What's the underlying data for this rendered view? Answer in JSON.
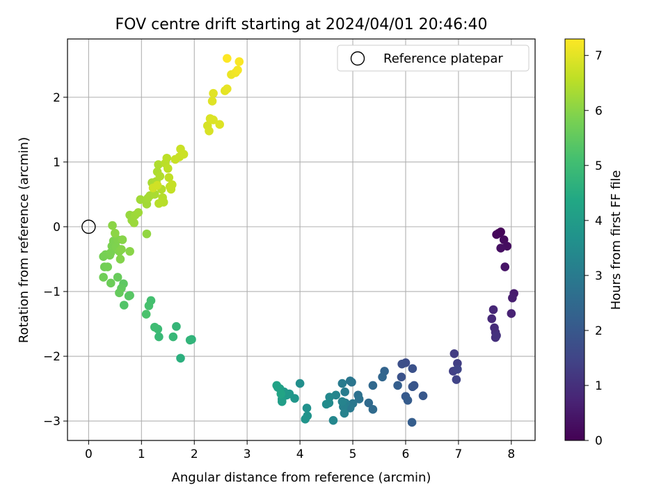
{
  "chart_data": {
    "type": "scatter",
    "title": "FOV centre drift starting at 2024/04/01 20:46:40",
    "xlabel": "Angular distance from reference (arcmin)",
    "ylabel": "Rotation from reference (arcmin)",
    "xlim": [
      -0.4,
      8.45
    ],
    "ylim": [
      -3.3,
      2.9
    ],
    "xticks": [
      "0",
      "1",
      "2",
      "3",
      "4",
      "5",
      "6",
      "7",
      "8"
    ],
    "yticks": [
      "−3",
      "−2",
      "−1",
      "0",
      "1",
      "2"
    ],
    "grid": true,
    "legend": {
      "placement": "top-right",
      "entries": [
        {
          "label": "Reference platepar",
          "marker": "open-circle"
        }
      ]
    },
    "reference_point": {
      "x": 0,
      "y": 0
    },
    "colorbar": {
      "label": "Hours from first FF file",
      "colormap": "viridis",
      "range": [
        0,
        7.3
      ],
      "ticks": [
        "0",
        "1",
        "2",
        "3",
        "4",
        "5",
        "6",
        "7"
      ]
    },
    "points": [
      {
        "x": 7.76,
        "y": -0.1,
        "hours": 0.05
      },
      {
        "x": 7.8,
        "y": -0.08,
        "hours": 0.1
      },
      {
        "x": 7.72,
        "y": -0.12,
        "hours": 0.15
      },
      {
        "x": 7.86,
        "y": -0.2,
        "hours": 0.2
      },
      {
        "x": 7.92,
        "y": -0.3,
        "hours": 0.25
      },
      {
        "x": 7.8,
        "y": -0.33,
        "hours": 0.3
      },
      {
        "x": 7.88,
        "y": -0.62,
        "hours": 0.4
      },
      {
        "x": 8.05,
        "y": -1.03,
        "hours": 0.55
      },
      {
        "x": 8.02,
        "y": -1.1,
        "hours": 0.6
      },
      {
        "x": 8.0,
        "y": -1.34,
        "hours": 0.7
      },
      {
        "x": 7.66,
        "y": -1.28,
        "hours": 0.8
      },
      {
        "x": 7.63,
        "y": -1.42,
        "hours": 0.85
      },
      {
        "x": 7.68,
        "y": -1.56,
        "hours": 0.9
      },
      {
        "x": 7.7,
        "y": -1.63,
        "hours": 0.95
      },
      {
        "x": 7.7,
        "y": -1.71,
        "hours": 1.0
      },
      {
        "x": 7.72,
        "y": -1.68,
        "hours": 1.05
      },
      {
        "x": 6.92,
        "y": -1.96,
        "hours": 1.3
      },
      {
        "x": 6.98,
        "y": -2.11,
        "hours": 1.35
      },
      {
        "x": 6.9,
        "y": -2.23,
        "hours": 1.4
      },
      {
        "x": 6.96,
        "y": -2.36,
        "hours": 1.45
      },
      {
        "x": 6.98,
        "y": -2.2,
        "hours": 1.5
      },
      {
        "x": 6.0,
        "y": -2.1,
        "hours": 1.7
      },
      {
        "x": 5.93,
        "y": -2.12,
        "hours": 1.75
      },
      {
        "x": 6.13,
        "y": -2.19,
        "hours": 1.8
      },
      {
        "x": 5.92,
        "y": -2.32,
        "hours": 1.85
      },
      {
        "x": 6.16,
        "y": -2.45,
        "hours": 1.9
      },
      {
        "x": 6.13,
        "y": -2.47,
        "hours": 1.95
      },
      {
        "x": 6.33,
        "y": -2.61,
        "hours": 2.0
      },
      {
        "x": 6.0,
        "y": -2.62,
        "hours": 2.05
      },
      {
        "x": 6.04,
        "y": -2.68,
        "hours": 2.1
      },
      {
        "x": 6.12,
        "y": -3.02,
        "hours": 2.15
      },
      {
        "x": 5.85,
        "y": -2.45,
        "hours": 2.2
      },
      {
        "x": 5.6,
        "y": -2.23,
        "hours": 2.35
      },
      {
        "x": 5.56,
        "y": -2.32,
        "hours": 2.4
      },
      {
        "x": 5.38,
        "y": -2.45,
        "hours": 2.45
      },
      {
        "x": 5.3,
        "y": -2.72,
        "hours": 2.5
      },
      {
        "x": 5.38,
        "y": -2.82,
        "hours": 2.55
      },
      {
        "x": 5.1,
        "y": -2.6,
        "hours": 2.7
      },
      {
        "x": 5.12,
        "y": -2.66,
        "hours": 2.75
      },
      {
        "x": 4.98,
        "y": -2.4,
        "hours": 2.8
      },
      {
        "x": 4.95,
        "y": -2.38,
        "hours": 2.85
      },
      {
        "x": 5.0,
        "y": -2.73,
        "hours": 2.9
      },
      {
        "x": 4.95,
        "y": -2.8,
        "hours": 2.95
      },
      {
        "x": 4.8,
        "y": -2.42,
        "hours": 3.0
      },
      {
        "x": 4.85,
        "y": -2.55,
        "hours": 3.05
      },
      {
        "x": 4.86,
        "y": -2.72,
        "hours": 3.1
      },
      {
        "x": 4.82,
        "y": -2.78,
        "hours": 3.15
      },
      {
        "x": 4.84,
        "y": -2.88,
        "hours": 3.2
      },
      {
        "x": 4.8,
        "y": -2.7,
        "hours": 3.25
      },
      {
        "x": 4.68,
        "y": -2.6,
        "hours": 3.3
      },
      {
        "x": 4.63,
        "y": -2.99,
        "hours": 3.35
      },
      {
        "x": 4.56,
        "y": -2.63,
        "hours": 3.4
      },
      {
        "x": 4.55,
        "y": -2.72,
        "hours": 3.45
      },
      {
        "x": 4.5,
        "y": -2.74,
        "hours": 3.5
      },
      {
        "x": 4.0,
        "y": -2.42,
        "hours": 3.6
      },
      {
        "x": 4.13,
        "y": -2.8,
        "hours": 3.65
      },
      {
        "x": 4.14,
        "y": -2.92,
        "hours": 3.7
      },
      {
        "x": 4.1,
        "y": -2.97,
        "hours": 3.75
      },
      {
        "x": 3.9,
        "y": -2.65,
        "hours": 3.8
      },
      {
        "x": 3.8,
        "y": -2.58,
        "hours": 3.85
      },
      {
        "x": 3.75,
        "y": -2.6,
        "hours": 3.9
      },
      {
        "x": 3.7,
        "y": -2.55,
        "hours": 3.95
      },
      {
        "x": 3.66,
        "y": -2.66,
        "hours": 4.0
      },
      {
        "x": 3.66,
        "y": -2.7,
        "hours": 4.05
      },
      {
        "x": 3.62,
        "y": -2.5,
        "hours": 4.1
      },
      {
        "x": 3.58,
        "y": -2.48,
        "hours": 4.15
      },
      {
        "x": 3.56,
        "y": -2.45,
        "hours": 4.2
      },
      {
        "x": 3.64,
        "y": -2.58,
        "hours": 4.25
      },
      {
        "x": 1.74,
        "y": -2.03,
        "hours": 4.6
      },
      {
        "x": 1.95,
        "y": -1.74,
        "hours": 4.7
      },
      {
        "x": 1.92,
        "y": -1.75,
        "hours": 4.75
      },
      {
        "x": 1.66,
        "y": -1.54,
        "hours": 4.8
      },
      {
        "x": 1.6,
        "y": -1.7,
        "hours": 4.85
      },
      {
        "x": 1.33,
        "y": -1.7,
        "hours": 4.9
      },
      {
        "x": 1.31,
        "y": -1.58,
        "hours": 4.95
      },
      {
        "x": 1.25,
        "y": -1.55,
        "hours": 5.0
      },
      {
        "x": 1.18,
        "y": -1.14,
        "hours": 5.1
      },
      {
        "x": 1.14,
        "y": -1.22,
        "hours": 5.15
      },
      {
        "x": 1.09,
        "y": -1.35,
        "hours": 5.2
      },
      {
        "x": 0.67,
        "y": -1.21,
        "hours": 5.3
      },
      {
        "x": 0.78,
        "y": -1.06,
        "hours": 5.35
      },
      {
        "x": 0.76,
        "y": -1.07,
        "hours": 5.4
      },
      {
        "x": 0.66,
        "y": -0.88,
        "hours": 5.45
      },
      {
        "x": 0.62,
        "y": -0.95,
        "hours": 5.5
      },
      {
        "x": 0.58,
        "y": -1.02,
        "hours": 5.55
      },
      {
        "x": 0.55,
        "y": -0.78,
        "hours": 5.6
      },
      {
        "x": 0.42,
        "y": -0.87,
        "hours": 5.65
      },
      {
        "x": 0.28,
        "y": -0.78,
        "hours": 5.7
      },
      {
        "x": 0.3,
        "y": -0.62,
        "hours": 5.72
      },
      {
        "x": 0.36,
        "y": -0.62,
        "hours": 5.74
      },
      {
        "x": 0.28,
        "y": -0.46,
        "hours": 5.76
      },
      {
        "x": 0.32,
        "y": -0.43,
        "hours": 5.78
      },
      {
        "x": 0.4,
        "y": -0.44,
        "hours": 5.8
      },
      {
        "x": 0.42,
        "y": -0.4,
        "hours": 5.82
      },
      {
        "x": 0.44,
        "y": -0.3,
        "hours": 5.84
      },
      {
        "x": 0.47,
        "y": -0.22,
        "hours": 5.86
      },
      {
        "x": 0.52,
        "y": -0.31,
        "hours": 5.88
      },
      {
        "x": 0.55,
        "y": -0.2,
        "hours": 5.9
      },
      {
        "x": 0.58,
        "y": -0.38,
        "hours": 5.92
      },
      {
        "x": 0.6,
        "y": -0.5,
        "hours": 5.94
      },
      {
        "x": 0.62,
        "y": -0.35,
        "hours": 5.96
      },
      {
        "x": 0.64,
        "y": -0.2,
        "hours": 5.98
      },
      {
        "x": 0.78,
        "y": -0.38,
        "hours": 6.0
      },
      {
        "x": 0.45,
        "y": 0.02,
        "hours": 6.02
      },
      {
        "x": 0.5,
        "y": -0.1,
        "hours": 6.04
      },
      {
        "x": 1.1,
        "y": -0.11,
        "hours": 6.1
      },
      {
        "x": 0.78,
        "y": 0.18,
        "hours": 6.15
      },
      {
        "x": 0.82,
        "y": 0.1,
        "hours": 6.18
      },
      {
        "x": 0.86,
        "y": 0.06,
        "hours": 6.2
      },
      {
        "x": 0.88,
        "y": 0.18,
        "hours": 6.22
      },
      {
        "x": 0.94,
        "y": 0.22,
        "hours": 6.24
      },
      {
        "x": 0.98,
        "y": 0.42,
        "hours": 6.26
      },
      {
        "x": 1.1,
        "y": 0.35,
        "hours": 6.28
      },
      {
        "x": 1.12,
        "y": 0.44,
        "hours": 6.3
      },
      {
        "x": 1.16,
        "y": 0.48,
        "hours": 6.32
      },
      {
        "x": 1.2,
        "y": 0.68,
        "hours": 6.34
      },
      {
        "x": 1.25,
        "y": 0.5,
        "hours": 6.36
      },
      {
        "x": 1.28,
        "y": 0.7,
        "hours": 6.38
      },
      {
        "x": 1.3,
        "y": 0.85,
        "hours": 6.4
      },
      {
        "x": 1.32,
        "y": 0.96,
        "hours": 6.42
      },
      {
        "x": 1.35,
        "y": 0.78,
        "hours": 6.44
      },
      {
        "x": 1.38,
        "y": 0.58,
        "hours": 6.46
      },
      {
        "x": 1.4,
        "y": 0.45,
        "hours": 6.48
      },
      {
        "x": 1.42,
        "y": 0.38,
        "hours": 6.5
      },
      {
        "x": 1.33,
        "y": 0.36,
        "hours": 6.52
      },
      {
        "x": 1.45,
        "y": 0.98,
        "hours": 6.54
      },
      {
        "x": 1.48,
        "y": 1.06,
        "hours": 6.56
      },
      {
        "x": 1.5,
        "y": 0.9,
        "hours": 6.58
      },
      {
        "x": 1.52,
        "y": 0.76,
        "hours": 6.6
      },
      {
        "x": 1.54,
        "y": 0.62,
        "hours": 6.62
      },
      {
        "x": 1.56,
        "y": 0.58,
        "hours": 6.64
      },
      {
        "x": 1.58,
        "y": 0.65,
        "hours": 6.66
      },
      {
        "x": 1.64,
        "y": 1.04,
        "hours": 6.68
      },
      {
        "x": 1.72,
        "y": 1.08,
        "hours": 6.7
      },
      {
        "x": 1.74,
        "y": 1.2,
        "hours": 6.72
      },
      {
        "x": 1.8,
        "y": 1.12,
        "hours": 6.74
      },
      {
        "x": 1.22,
        "y": 0.6,
        "hours": 6.76
      },
      {
        "x": 1.3,
        "y": 0.64,
        "hours": 6.78
      },
      {
        "x": 2.25,
        "y": 1.56,
        "hours": 6.85
      },
      {
        "x": 2.28,
        "y": 1.48,
        "hours": 6.88
      },
      {
        "x": 2.3,
        "y": 1.67,
        "hours": 6.9
      },
      {
        "x": 2.36,
        "y": 1.65,
        "hours": 6.92
      },
      {
        "x": 2.48,
        "y": 1.58,
        "hours": 6.94
      },
      {
        "x": 2.34,
        "y": 1.94,
        "hours": 6.96
      },
      {
        "x": 2.36,
        "y": 2.06,
        "hours": 6.98
      },
      {
        "x": 2.58,
        "y": 2.1,
        "hours": 7.0
      },
      {
        "x": 2.62,
        "y": 2.13,
        "hours": 7.05
      },
      {
        "x": 2.7,
        "y": 2.35,
        "hours": 7.1
      },
      {
        "x": 2.78,
        "y": 2.38,
        "hours": 7.15
      },
      {
        "x": 2.82,
        "y": 2.42,
        "hours": 7.2
      },
      {
        "x": 2.85,
        "y": 2.55,
        "hours": 7.25
      },
      {
        "x": 2.62,
        "y": 2.6,
        "hours": 7.3
      }
    ]
  }
}
